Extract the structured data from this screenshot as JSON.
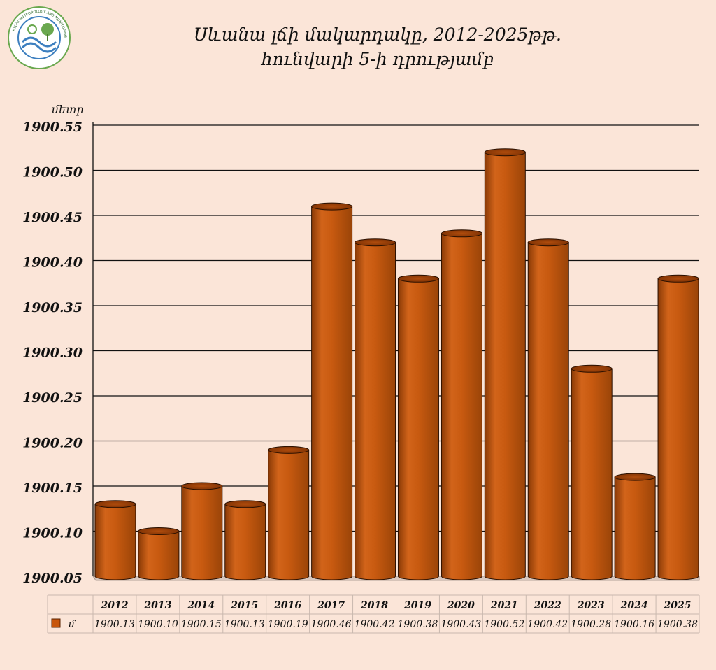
{
  "title": {
    "line1": "Սևանա լճի մակարդակը, 2012-2025թթ.",
    "line2": "հունվարի 5-ի դրությամբ"
  },
  "logo": {
    "text": "HYDROMETEOROLOGY AND MONITORING CENTER",
    "icon": "hydromet-center-logo"
  },
  "colors": {
    "background": "#fbe5d8",
    "bar": "#c8560c",
    "bar_dark": "#7a3004",
    "bar_light": "#e0772a"
  },
  "chart_data": {
    "type": "bar",
    "ylabel": "մետր",
    "categories": [
      "2012",
      "2013",
      "2014",
      "2015",
      "2016",
      "2017",
      "2018",
      "2019",
      "2020",
      "2021",
      "2022",
      "2023",
      "2024",
      "2025"
    ],
    "series": [
      {
        "name": "մ",
        "values": [
          1900.13,
          1900.1,
          1900.15,
          1900.13,
          1900.19,
          1900.46,
          1900.42,
          1900.38,
          1900.43,
          1900.52,
          1900.42,
          1900.28,
          1900.16,
          1900.38
        ]
      }
    ],
    "ylim": [
      1900.05,
      1900.55
    ],
    "yticks": [
      "1900.05",
      "1900.10",
      "1900.15",
      "1900.20",
      "1900.25",
      "1900.30",
      "1900.35",
      "1900.40",
      "1900.45",
      "1900.50",
      "1900.55"
    ],
    "grid": true,
    "data_table": true
  }
}
